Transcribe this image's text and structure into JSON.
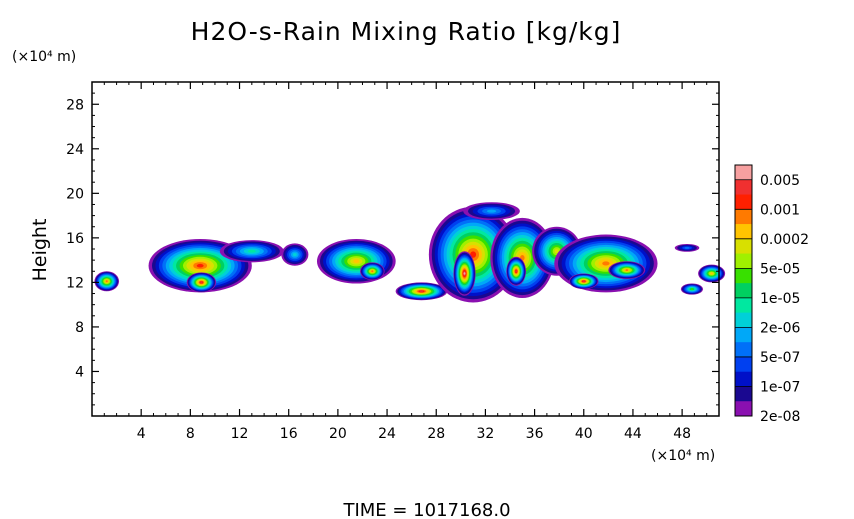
{
  "chart_data": {
    "type": "heatmap",
    "title": "H2O-s-Rain Mixing Ratio [kg/kg]",
    "ylabel": "Height",
    "x_unit_label": "(×10⁴ m)",
    "y_unit_label": "(×10⁴ m)",
    "xlim": [
      0,
      51
    ],
    "ylim": [
      0,
      30
    ],
    "x_ticks": [
      4,
      8,
      12,
      16,
      20,
      24,
      28,
      32,
      36,
      40,
      44,
      48
    ],
    "y_ticks": [
      4,
      8,
      12,
      16,
      20,
      24,
      28
    ],
    "grid": false,
    "colorbar": {
      "labels": [
        "0.005",
        "0.001",
        "0.0002",
        "5e-05",
        "1e-05",
        "2e-06",
        "5e-07",
        "1e-07",
        "2e-08"
      ],
      "colors": [
        "#f7a0a0",
        "#f03030",
        "#ff2000",
        "#ff7a00",
        "#ffc400",
        "#d8e000",
        "#a0f000",
        "#38e000",
        "#00d060",
        "#00e8a0",
        "#00d0d8",
        "#00a8f8",
        "#0070f8",
        "#0040f0",
        "#0010c8",
        "#1a0890",
        "#8a10b0"
      ]
    },
    "clouds": [
      {
        "x": 1.2,
        "y": 12.1,
        "rx": 1.0,
        "ry": 0.9,
        "peak": 0.85
      },
      {
        "x": 8.8,
        "y": 13.5,
        "rx": 4.2,
        "ry": 2.4,
        "peak": 0.9
      },
      {
        "x": 8.9,
        "y": 12.0,
        "rx": 1.2,
        "ry": 0.9,
        "peak": 0.95
      },
      {
        "x": 13.0,
        "y": 14.8,
        "rx": 2.6,
        "ry": 1.0,
        "peak": 0.45
      },
      {
        "x": 16.5,
        "y": 14.5,
        "rx": 1.1,
        "ry": 1.0,
        "peak": 0.4
      },
      {
        "x": 21.5,
        "y": 13.9,
        "rx": 3.2,
        "ry": 2.0,
        "peak": 0.75
      },
      {
        "x": 22.8,
        "y": 13.0,
        "rx": 1.0,
        "ry": 0.8,
        "peak": 0.8
      },
      {
        "x": 26.8,
        "y": 11.2,
        "rx": 2.1,
        "ry": 0.8,
        "peak": 0.95
      },
      {
        "x": 31.0,
        "y": 14.5,
        "rx": 3.6,
        "ry": 4.3,
        "peak": 0.9
      },
      {
        "x": 30.3,
        "y": 12.8,
        "rx": 0.9,
        "ry": 2.0,
        "peak": 1.0
      },
      {
        "x": 35.0,
        "y": 14.2,
        "rx": 2.6,
        "ry": 3.6,
        "peak": 0.85
      },
      {
        "x": 34.5,
        "y": 13.0,
        "rx": 0.8,
        "ry": 1.3,
        "peak": 0.95
      },
      {
        "x": 32.5,
        "y": 18.4,
        "rx": 2.3,
        "ry": 0.8,
        "peak": 0.35
      },
      {
        "x": 37.8,
        "y": 14.8,
        "rx": 2.0,
        "ry": 2.2,
        "peak": 0.7
      },
      {
        "x": 41.8,
        "y": 13.7,
        "rx": 4.2,
        "ry": 2.6,
        "peak": 0.85
      },
      {
        "x": 40.0,
        "y": 12.1,
        "rx": 1.2,
        "ry": 0.7,
        "peak": 0.95
      },
      {
        "x": 43.5,
        "y": 13.1,
        "rx": 1.5,
        "ry": 0.8,
        "peak": 0.85
      },
      {
        "x": 48.4,
        "y": 15.1,
        "rx": 1.0,
        "ry": 0.35,
        "peak": 0.3
      },
      {
        "x": 48.8,
        "y": 11.4,
        "rx": 0.9,
        "ry": 0.5,
        "peak": 0.6
      },
      {
        "x": 50.4,
        "y": 12.8,
        "rx": 1.1,
        "ry": 0.8,
        "peak": 0.75
      }
    ],
    "footer": "TIME =  1017168.0"
  }
}
